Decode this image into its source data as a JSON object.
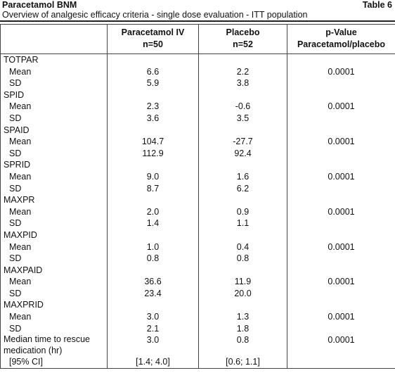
{
  "header": {
    "title": "Paracetamol BNM",
    "table_number": "Table 6",
    "subtitle": "Overview of analgesic efficacy criteria - single dose evaluation - ITT population"
  },
  "table": {
    "columns": [
      {
        "title": "Paracetamol IV",
        "n": "n=50"
      },
      {
        "title": "Placebo",
        "n": "n=52"
      },
      {
        "title": "p-Value",
        "n": "Paracetamol/placebo"
      }
    ],
    "rows": [
      {
        "label": "TOTPAR"
      },
      {
        "label": "Mean",
        "iv": "6.6",
        "placebo": "2.2",
        "p": "0.0001"
      },
      {
        "label": "SD",
        "iv": "5.9",
        "placebo": "3.8"
      },
      {
        "label": "SPID"
      },
      {
        "label": "Mean",
        "iv": "2.3",
        "placebo": "-0.6",
        "p": "0.0001"
      },
      {
        "label": "SD",
        "iv": "3.6",
        "placebo": "3.5"
      },
      {
        "label": "SPAID"
      },
      {
        "label": "Mean",
        "iv": "104.7",
        "placebo": "-27.7",
        "p": "0.0001"
      },
      {
        "label": "SD",
        "iv": "112.9",
        "placebo": "92.4"
      },
      {
        "label": "SPRID"
      },
      {
        "label": "Mean",
        "iv": "9.0",
        "placebo": "1.6",
        "p": "0.0001"
      },
      {
        "label": "SD",
        "iv": "8.7",
        "placebo": "6.2"
      },
      {
        "label": "MAXPR"
      },
      {
        "label": "Mean",
        "iv": "2.0",
        "placebo": "0.9",
        "p": "0.0001"
      },
      {
        "label": "SD",
        "iv": "1.4",
        "placebo": "1.1"
      },
      {
        "label": "MAXPID"
      },
      {
        "label": "Mean",
        "iv": "1.0",
        "placebo": "0.4",
        "p": "0.0001"
      },
      {
        "label": "SD",
        "iv": "0.8",
        "placebo": "0.8"
      },
      {
        "label": "MAXPAID"
      },
      {
        "label": "Mean",
        "iv": "36.6",
        "placebo": "11.9",
        "p": "0.0001"
      },
      {
        "label": "SD",
        "iv": "23.4",
        "placebo": "20.0"
      },
      {
        "label": "MAXPRID"
      },
      {
        "label": "Mean",
        "iv": "3.0",
        "placebo": "1.3",
        "p": "0.0001"
      },
      {
        "label": "SD",
        "iv": "2.1",
        "placebo": "1.8"
      },
      {
        "label": "Median time to rescue medication (hr)",
        "iv": "3.0",
        "placebo": "0.8",
        "p": "0.0001"
      },
      {
        "label": "[95% CI]",
        "iv": "[1.4; 4.0]",
        "placebo": "[0.6; 1.1]"
      }
    ]
  }
}
